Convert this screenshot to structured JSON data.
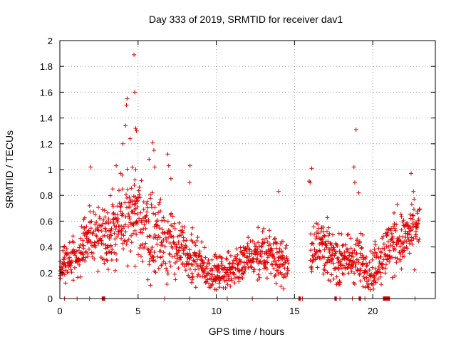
{
  "chart_data": {
    "type": "scatter",
    "title": "Day 333 of 2019, SRMTID for receiver dav1",
    "xlabel": "GPS time / hours",
    "ylabel": "SRMTID / TECUs",
    "xlim": [
      0,
      24
    ],
    "ylim": [
      0,
      2
    ],
    "x_ticks": [
      0,
      5,
      10,
      15,
      20
    ],
    "y_ticks": [
      0,
      0.2,
      0.4,
      0.6,
      0.8,
      1,
      1.2,
      1.4,
      1.6,
      1.8,
      2
    ],
    "x_tick_labels": [
      "0",
      "5",
      "10",
      "15",
      "20"
    ],
    "y_tick_labels": [
      "0",
      "0.2",
      "0.4",
      "0.6",
      "0.8",
      "1",
      "1.2",
      "1.4",
      "1.6",
      "1.8",
      "2"
    ],
    "grid": true,
    "marker_color": "#e00000",
    "marker": "plus",
    "envelope": {
      "hours": [
        0,
        1,
        1.6,
        2.5,
        3.5,
        4.3,
        5,
        6,
        7,
        8.3,
        9.5,
        10.5,
        12,
        13.5,
        14.6,
        15.3,
        16,
        16.5,
        17.5,
        19,
        20,
        21,
        22,
        23
      ],
      "baseline": [
        0.27,
        0.3,
        0.45,
        0.5,
        0.55,
        0.6,
        0.6,
        0.5,
        0.45,
        0.3,
        0.2,
        0.2,
        0.3,
        0.35,
        0.25,
        null,
        0.3,
        0.5,
        0.3,
        0.3,
        0.2,
        0.4,
        0.45,
        0.55
      ],
      "spread": [
        0.12,
        0.15,
        0.2,
        0.2,
        0.25,
        0.35,
        0.35,
        0.3,
        0.25,
        0.2,
        0.12,
        0.12,
        0.15,
        0.2,
        0.12,
        null,
        0.15,
        0.25,
        0.15,
        0.2,
        0.15,
        0.2,
        0.2,
        0.2
      ]
    },
    "peaks": [
      {
        "x": 1.97,
        "y": 1.02
      },
      {
        "x": 3.38,
        "y": 0.85
      },
      {
        "x": 3.6,
        "y": 1.03
      },
      {
        "x": 4.03,
        "y": 1.2
      },
      {
        "x": 4.2,
        "y": 1.34
      },
      {
        "x": 4.26,
        "y": 1.5
      },
      {
        "x": 4.3,
        "y": 1.55
      },
      {
        "x": 4.49,
        "y": 1.24
      },
      {
        "x": 4.74,
        "y": 1.89
      },
      {
        "x": 4.78,
        "y": 1.6
      },
      {
        "x": 4.85,
        "y": 1.32
      },
      {
        "x": 4.9,
        "y": 1.3
      },
      {
        "x": 4.85,
        "y": 1.0
      },
      {
        "x": 4.8,
        "y": 0.92
      },
      {
        "x": 5.7,
        "y": 1.08
      },
      {
        "x": 5.94,
        "y": 1.21
      },
      {
        "x": 6.01,
        "y": 1.15
      },
      {
        "x": 6.06,
        "y": 1.02
      },
      {
        "x": 6.9,
        "y": 1.12
      },
      {
        "x": 6.96,
        "y": 1.03
      },
      {
        "x": 7.1,
        "y": 0.93
      },
      {
        "x": 8.32,
        "y": 1.03
      },
      {
        "x": 8.29,
        "y": 0.9
      },
      {
        "x": 13.98,
        "y": 0.83
      },
      {
        "x": 16.1,
        "y": 1.01
      },
      {
        "x": 15.94,
        "y": 0.91
      },
      {
        "x": 16.0,
        "y": 0.9
      },
      {
        "x": 18.93,
        "y": 1.31
      },
      {
        "x": 18.8,
        "y": 1.02
      },
      {
        "x": 18.85,
        "y": 0.9
      },
      {
        "x": 19.1,
        "y": 0.82
      },
      {
        "x": 22.45,
        "y": 0.97
      },
      {
        "x": 22.6,
        "y": 0.83
      },
      {
        "x": 21.56,
        "y": 0.73
      }
    ],
    "zero_segments": [
      [
        2.7,
        2.9
      ],
      [
        15.25,
        15.4
      ],
      [
        17.55,
        17.7
      ],
      [
        19.1,
        19.25
      ],
      [
        20.65,
        21.1
      ]
    ]
  }
}
